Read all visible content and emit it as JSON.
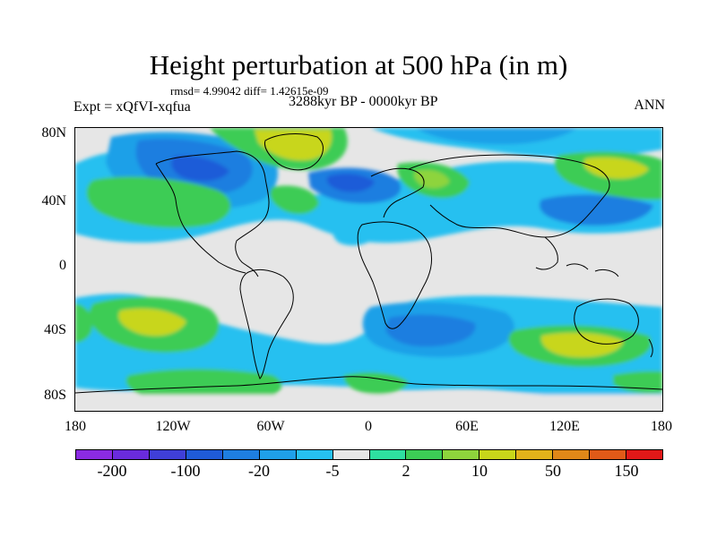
{
  "title": "Height perturbation at 500 hPa (in m)",
  "stats": "rmsd= 4.99042  diff= 1.42615e-09",
  "experiment": "Expt = xQfVI-xqfua",
  "period": "3288kyr BP - 0000kyr BP",
  "season": "ANN",
  "map": {
    "y_labels": [
      "80N",
      "40N",
      "0",
      "40S",
      "80S"
    ],
    "x_labels": [
      "180",
      "120W",
      "60W",
      "0",
      "60E",
      "120E",
      "180"
    ]
  },
  "colorbar": {
    "colors": [
      "#8b2be2",
      "#6a2bdc",
      "#3f3fd8",
      "#1f5bd8",
      "#1e7ee0",
      "#1fa0e8",
      "#26c0f0",
      "#e6e6e6",
      "#2ee0a0",
      "#3ccc55",
      "#8ed43c",
      "#c8d61a",
      "#e2b21a",
      "#e08818",
      "#e05a18",
      "#e01818"
    ],
    "labels": [
      "-200",
      "-100",
      "-20",
      "-5",
      "2",
      "10",
      "50",
      "150"
    ]
  }
}
